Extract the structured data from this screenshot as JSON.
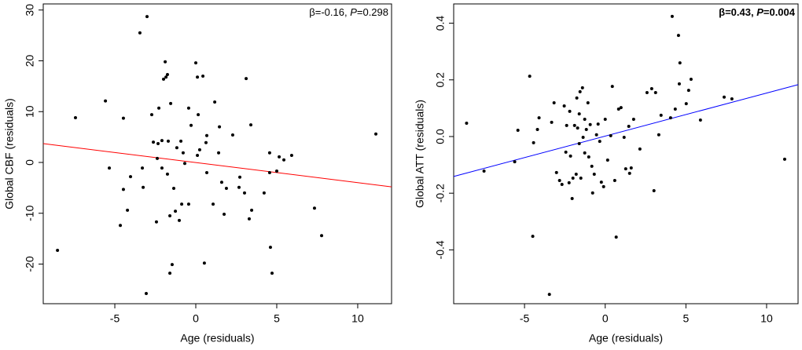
{
  "chart_data": [
    {
      "type": "scatter",
      "xlabel": "Age (residuals)",
      "ylabel": "Global CBF (residuals)",
      "annotation": [
        "β=-0.16, ",
        "P",
        "=0.298"
      ],
      "annotation_bold": false,
      "color": "#000000",
      "xlim": [
        -9.42,
        12.09
      ],
      "ylim": [
        -27.8,
        31.2
      ],
      "xticks": [
        -5,
        0,
        5,
        10
      ],
      "yticks": [
        -20,
        -10,
        0,
        10,
        20,
        30
      ],
      "regression_line": {
        "color": "#ff0000",
        "x": [
          -9.42,
          12.09
        ],
        "y": [
          3.7,
          -4.8
        ]
      },
      "x": [
        -8.54,
        -7.43,
        -5.58,
        -5.34,
        -4.47,
        -4.47,
        -4.66,
        -4.22,
        -4.03,
        -3.45,
        -3.01,
        -3.3,
        -3.25,
        -3.06,
        -2.72,
        -2.62,
        -2.43,
        -2.28,
        -2.38,
        -2.33,
        -2.09,
        -2.09,
        -1.99,
        -1.89,
        -1.84,
        -1.75,
        -1.75,
        -1.6,
        -1.55,
        -1.7,
        -1.6,
        -1.46,
        -1.36,
        -1.26,
        -1.17,
        -1.02,
        -0.92,
        -0.87,
        -0.78,
        -0.68,
        -0.44,
        -0.44,
        -0.29,
        0,
        0.1,
        0.1,
        0.15,
        0.24,
        0.44,
        0.53,
        0.63,
        0.68,
        0.68,
        1.07,
        1.17,
        1.41,
        1.46,
        1.6,
        1.75,
        1.89,
        2.28,
        2.67,
        2.72,
        3.01,
        3.11,
        3.3,
        3.4,
        3.45,
        4.22,
        4.56,
        4.56,
        4.61,
        4.71,
        5.0,
        5.15,
        5.44,
        5.92,
        7.33,
        7.77,
        11.12
      ],
      "values": [
        -17.3,
        8.8,
        12.1,
        -1.1,
        8.7,
        -5.3,
        -12.4,
        -9.4,
        -2.8,
        25.5,
        28.7,
        -1.1,
        -4.9,
        -25.8,
        9.4,
        4.0,
        -11.7,
        10.7,
        0.8,
        3.7,
        4.3,
        -1.1,
        16.4,
        19.8,
        16.8,
        17.3,
        -2.3,
        -10.5,
        11.6,
        4.2,
        -21.8,
        -20.1,
        -5.1,
        -9.6,
        2.9,
        -11.4,
        4.2,
        -8.2,
        1.9,
        -0.2,
        -8.2,
        10.7,
        7.3,
        19.6,
        16.8,
        1.4,
        9.4,
        2.5,
        17.0,
        -19.8,
        3.9,
        5.3,
        -2.0,
        -8.2,
        11.9,
        1.9,
        7.0,
        -3.9,
        -10.2,
        -5.1,
        5.4,
        -4.9,
        -2.9,
        -6.0,
        16.5,
        -11.1,
        7.4,
        -9.4,
        -6.0,
        1.9,
        -2.0,
        -16.7,
        -21.8,
        -1.7,
        1.1,
        0.5,
        1.4,
        -9.0,
        -14.4,
        5.6
      ]
    },
    {
      "type": "scatter",
      "xlabel": "Age (residuals)",
      "ylabel": "Global ATT (residuals)",
      "annotation": [
        "β=0.43, ",
        "P",
        "=0.004"
      ],
      "annotation_bold": true,
      "color": "#000000",
      "xlim": [
        -9.39,
        11.95
      ],
      "ylim": [
        -0.59,
        0.468
      ],
      "xticks": [
        -5,
        0,
        5,
        10
      ],
      "yticks": [
        -0.4,
        -0.2,
        {
          "value": 0,
          "label": "0.0"
        },
        0.2,
        0.4
      ],
      "regression_line": {
        "color": "#0000ff",
        "x": [
          -9.39,
          11.95
        ],
        "y": [
          -0.141,
          0.183
        ]
      },
      "x": [
        -8.59,
        -7.51,
        -5.61,
        -5.41,
        -4.68,
        -4.49,
        -4.44,
        -4.2,
        -4.1,
        -3.46,
        -3.32,
        -3.17,
        -3.02,
        -2.83,
        -2.68,
        -2.54,
        -2.44,
        -2.39,
        -2.24,
        -2.2,
        -2.15,
        -2.05,
        -2.0,
        -1.9,
        -1.8,
        -1.76,
        -1.71,
        -1.61,
        -1.61,
        -1.56,
        -1.51,
        -1.41,
        -1.37,
        -1.27,
        -1.27,
        -1.17,
        -1.07,
        -1.02,
        -0.93,
        -0.83,
        -0.78,
        -0.68,
        -0.54,
        -0.44,
        -0.34,
        -0.24,
        -0.1,
        0,
        0.15,
        0.34,
        0.44,
        0.59,
        0.68,
        0.83,
        0.98,
        1.17,
        1.27,
        1.46,
        1.51,
        1.61,
        1.76,
        2.15,
        2.59,
        2.88,
        3.02,
        3.12,
        3.32,
        3.46,
        4.05,
        4.15,
        4.34,
        4.54,
        4.59,
        4.63,
        5.02,
        5.17,
        5.32,
        5.9,
        7.37,
        7.85,
        11.12
      ],
      "values": [
        0.047,
        -0.122,
        -0.089,
        0.022,
        0.213,
        -0.352,
        -0.022,
        0.025,
        0.066,
        -0.557,
        0.05,
        0.119,
        -0.127,
        -0.155,
        -0.169,
        0.108,
        -0.055,
        0.039,
        -0.163,
        0.089,
        -0.069,
        -0.219,
        -0.147,
        0.039,
        -0.133,
        0.136,
        0.03,
        -0.025,
        0.08,
        0.158,
        -0.147,
        0.172,
        -0.003,
        -0.058,
        0.061,
        0.025,
        0.119,
        -0.072,
        0.042,
        -0.105,
        -0.199,
        -0.133,
        0.006,
        0.044,
        -0.017,
        -0.161,
        -0.177,
        0.061,
        -0.083,
        0.003,
        0.177,
        -0.155,
        -0.355,
        0.097,
        0.102,
        -0.003,
        -0.114,
        0.036,
        -0.13,
        -0.111,
        0.061,
        -0.044,
        0.155,
        0.169,
        -0.191,
        0.155,
        0.006,
        0.075,
        0.066,
        0.424,
        0.097,
        0.357,
        0.186,
        0.26,
        0.116,
        0.163,
        0.202,
        0.058,
        0.139,
        0.133,
        -0.08
      ]
    }
  ]
}
